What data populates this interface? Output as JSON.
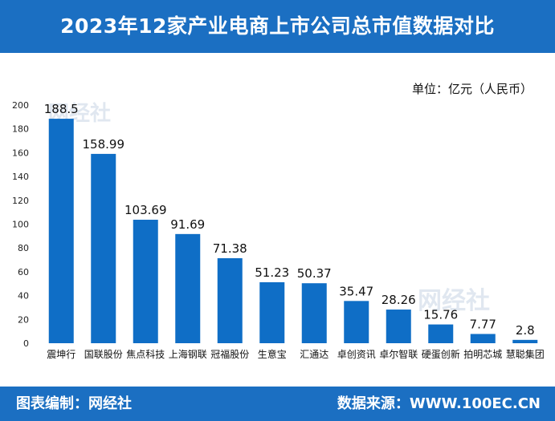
{
  "header": {
    "title": "2023年12家产业电商上市公司总市值数据对比"
  },
  "unit_label": "单位：亿元（人民币）",
  "footer": {
    "left": "图表编制：网经社",
    "right": "数据来源：WWW.100EC.CN"
  },
  "watermark": {
    "text": "网经社"
  },
  "colors": {
    "brand": "#1b6fc2",
    "bar": "#0f6ec6"
  },
  "chart_data": {
    "type": "bar",
    "title": "2023年12家产业电商上市公司总市值数据对比",
    "xlabel": "",
    "ylabel": "单位：亿元（人民币）",
    "ylim": [
      0,
      200
    ],
    "yticks": [
      0,
      20,
      40,
      60,
      80,
      100,
      120,
      140,
      160,
      180,
      200
    ],
    "categories": [
      "震坤行",
      "国联股份",
      "焦点科技",
      "上海钢联",
      "冠福股份",
      "生意宝",
      "汇通达",
      "卓创资讯",
      "卓尔智联",
      "硬蛋创新",
      "拍明芯城",
      "慧聪集团"
    ],
    "values": [
      188.5,
      158.99,
      103.69,
      91.69,
      71.38,
      51.23,
      50.37,
      35.47,
      28.26,
      15.76,
      7.77,
      2.8
    ],
    "value_labels": [
      "188.5",
      "158.99",
      "103.69",
      "91.69",
      "71.38",
      "51.23",
      "50.37",
      "35.47",
      "28.26",
      "15.76",
      "7.77",
      "2.8"
    ]
  }
}
